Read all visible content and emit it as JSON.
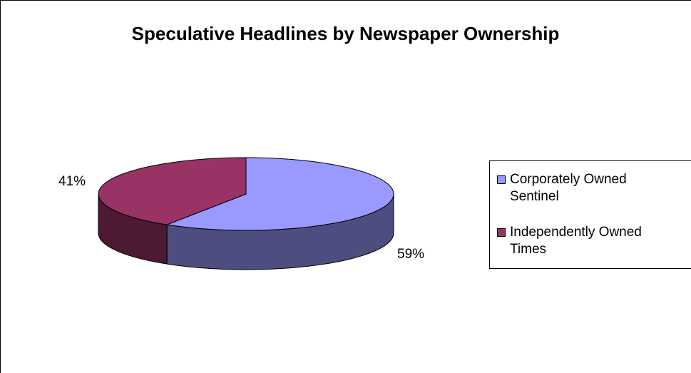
{
  "chart_data": {
    "type": "pie",
    "title": "Speculative Headlines by Newspaper Ownership",
    "categories": [
      "Corporately Owned\nSentinel",
      "Independently Owned\nTimes"
    ],
    "values": [
      59,
      41
    ],
    "data_labels": [
      "59%",
      "41%"
    ],
    "colors": {
      "slice_top": [
        "#9999ff",
        "#993366"
      ],
      "slice_side": [
        "#4d4d80",
        "#4d1933"
      ]
    },
    "legend_position": "right",
    "style": "3d"
  }
}
